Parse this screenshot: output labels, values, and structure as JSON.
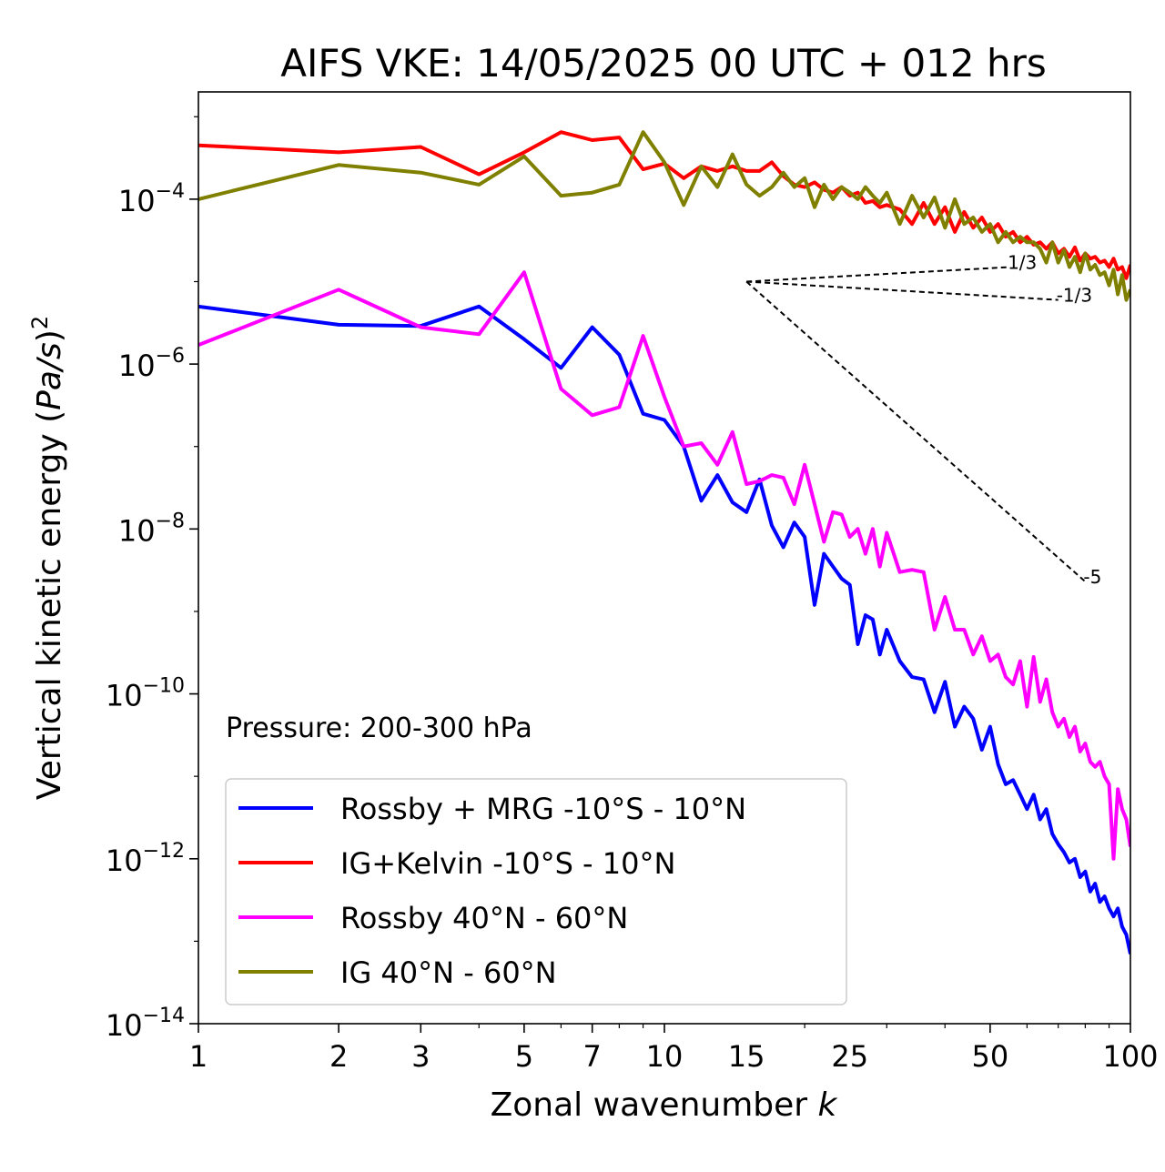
{
  "chart_data": {
    "type": "line",
    "title": "AIFS VKE: 14/05/2025 00 UTC + 012 hrs",
    "xlabel_text": "Zonal wavenumber ",
    "xlabel_italic": "k",
    "ylabel_text": "Vertical kinetic energy (",
    "ylabel_italic": "Pa/s",
    "ylabel_close": ")",
    "ylabel_sup": "2",
    "x_scale": "log",
    "y_scale": "log",
    "xlim": [
      1,
      100
    ],
    "ylim": [
      1e-14,
      0.002
    ],
    "x_ticks": [
      1,
      2,
      3,
      5,
      7,
      10,
      15,
      25,
      50,
      100
    ],
    "x_tick_labels": [
      "1",
      "2",
      "3",
      "5",
      "7",
      "10",
      "15",
      "25",
      "50",
      "100"
    ],
    "y_ticks": [
      {
        "value": 0.0001,
        "base": "10",
        "exp": "−4"
      },
      {
        "value": 1e-06,
        "base": "10",
        "exp": "−6"
      },
      {
        "value": 1e-08,
        "base": "10",
        "exp": "−8"
      },
      {
        "value": 1e-10,
        "base": "10",
        "exp": "−10"
      },
      {
        "value": 1e-12,
        "base": "10",
        "exp": "−12"
      },
      {
        "value": 1e-14,
        "base": "10",
        "exp": "−14"
      }
    ],
    "grid": false,
    "legend_placement": "lower-left",
    "annotation": "Pressure: 200-300 hPa",
    "reference_slopes": [
      {
        "label": "1/3",
        "x": [
          15,
          55
        ],
        "y": [
          1e-05,
          1.5e-05
        ]
      },
      {
        "label": "-1/3",
        "x": [
          15,
          70
        ],
        "y": [
          1e-05,
          6e-06
        ]
      },
      {
        "label": "-5",
        "x": [
          15,
          80
        ],
        "y": [
          1e-05,
          2.3e-09
        ]
      }
    ],
    "series": [
      {
        "name": "Rossby + MRG -10°S - 10°N",
        "color": "#0000ff",
        "x": [
          1,
          2,
          3,
          4,
          5,
          6,
          7,
          8,
          9,
          10,
          11,
          12,
          13,
          14,
          15,
          16,
          17,
          18,
          19,
          20,
          21,
          22,
          23,
          24,
          25,
          26,
          27,
          28,
          29,
          30,
          32,
          34,
          36,
          38,
          40,
          42,
          44,
          46,
          48,
          50,
          52,
          54,
          56,
          58,
          60,
          62,
          64,
          66,
          68,
          70,
          72,
          74,
          76,
          78,
          80,
          82,
          84,
          86,
          88,
          90,
          92,
          94,
          96,
          98,
          100
        ],
        "y": [
          5e-06,
          3e-06,
          2.9e-06,
          5e-06,
          2e-06,
          9e-07,
          2.8e-06,
          1.3e-06,
          2.5e-07,
          2.1e-07,
          1e-07,
          2.2e-08,
          4.5e-08,
          2.1e-08,
          1.6e-08,
          4e-08,
          1.1e-08,
          6e-09,
          1.2e-08,
          8e-09,
          1.2e-09,
          5e-09,
          3.5e-09,
          2.5e-09,
          2.1e-09,
          4e-10,
          9e-10,
          8e-10,
          3e-10,
          6e-10,
          2.5e-10,
          1.6e-10,
          1.5e-10,
          6e-11,
          1.4e-10,
          4e-11,
          7e-11,
          5e-11,
          2.1e-11,
          4e-11,
          1.4e-11,
          8e-12,
          9e-12,
          6e-12,
          4e-12,
          6e-12,
          3e-12,
          4e-12,
          2e-12,
          1.5e-12,
          1.2e-12,
          9e-13,
          1e-12,
          6e-13,
          7e-13,
          4e-13,
          5e-13,
          3e-13,
          3.5e-13,
          2.5e-13,
          2e-13,
          2.5e-13,
          1.5e-13,
          1.2e-13,
          7e-14
        ]
      },
      {
        "name": "IG+Kelvin -10°S - 10°N",
        "color": "#ff0000",
        "x": [
          1,
          2,
          3,
          4,
          5,
          6,
          7,
          8,
          9,
          10,
          11,
          12,
          13,
          14,
          15,
          16,
          17,
          18,
          19,
          20,
          21,
          22,
          23,
          24,
          25,
          26,
          27,
          28,
          29,
          30,
          32,
          34,
          36,
          38,
          40,
          42,
          44,
          46,
          48,
          50,
          52,
          54,
          56,
          58,
          60,
          62,
          64,
          66,
          68,
          70,
          72,
          74,
          76,
          78,
          80,
          82,
          84,
          86,
          88,
          90,
          92,
          94,
          96,
          98,
          100
        ],
        "y": [
          0.00045,
          0.00037,
          0.00043,
          0.0002,
          0.00037,
          0.00065,
          0.00052,
          0.00056,
          0.00023,
          0.00027,
          0.00018,
          0.00025,
          0.00022,
          0.00025,
          0.00022,
          0.00022,
          0.00028,
          0.00019,
          0.00015,
          0.00014,
          0.00016,
          0.00013,
          0.00012,
          0.00014,
          0.00011,
          0.00012,
          9e-05,
          9.5e-05,
          8e-05,
          8.5e-05,
          7.5e-05,
          5e-05,
          9e-05,
          5e-05,
          8e-05,
          4e-05,
          7e-05,
          4.5e-05,
          6e-05,
          4e-05,
          5e-05,
          3.5e-05,
          4e-05,
          3e-05,
          3.5e-05,
          2.8e-05,
          3e-05,
          2.5e-05,
          3e-05,
          2.2e-05,
          2.5e-05,
          2e-05,
          2.6e-05,
          1.8e-05,
          2.2e-05,
          1.9e-05,
          2e-05,
          1.7e-05,
          1.8e-05,
          1.5e-05,
          1.9e-05,
          1.4e-05,
          1.5e-05,
          1.1e-05,
          1.6e-05
        ]
      },
      {
        "name": "Rossby 40°N - 60°N",
        "color": "#ff00ff",
        "x": [
          1,
          2,
          3,
          4,
          5,
          6,
          7,
          8,
          9,
          10,
          11,
          12,
          13,
          14,
          15,
          16,
          17,
          18,
          19,
          20,
          21,
          22,
          23,
          24,
          25,
          26,
          27,
          28,
          29,
          30,
          32,
          34,
          36,
          38,
          40,
          42,
          44,
          46,
          48,
          50,
          52,
          54,
          56,
          58,
          60,
          62,
          64,
          66,
          68,
          70,
          72,
          74,
          76,
          78,
          80,
          82,
          84,
          86,
          88,
          90,
          92,
          94,
          96,
          98,
          100
        ],
        "y": [
          1.7e-06,
          8e-06,
          2.8e-06,
          2.3e-06,
          1.3e-05,
          5e-07,
          2.4e-07,
          3e-07,
          2.2e-06,
          4e-07,
          1e-07,
          1.1e-07,
          6e-08,
          1.5e-07,
          3.5e-08,
          3.8e-08,
          4.5e-08,
          4.2e-08,
          2e-08,
          6e-08,
          2e-08,
          7e-09,
          1.6e-08,
          1.5e-08,
          8e-09,
          1e-08,
          5e-09,
          1e-08,
          3.5e-09,
          9e-09,
          3e-09,
          3.2e-09,
          3e-09,
          6e-10,
          1.5e-09,
          6e-10,
          6e-10,
          3e-10,
          5e-10,
          2.5e-10,
          3e-10,
          1.6e-10,
          1.3e-10,
          2.5e-10,
          7e-11,
          2.8e-10,
          8e-11,
          1.5e-10,
          6e-11,
          4e-11,
          5e-11,
          3e-11,
          4e-11,
          2e-11,
          2.5e-11,
          1.5e-11,
          1.3e-11,
          1.5e-11,
          1e-11,
          8e-12,
          1e-12,
          7e-12,
          4e-12,
          3e-12,
          1.4e-12
        ]
      },
      {
        "name": "IG 40°N - 60°N",
        "color": "#808000",
        "x": [
          1,
          2,
          3,
          4,
          5,
          6,
          7,
          8,
          9,
          10,
          11,
          12,
          13,
          14,
          15,
          16,
          17,
          18,
          19,
          20,
          21,
          22,
          23,
          24,
          25,
          26,
          27,
          28,
          29,
          30,
          32,
          34,
          36,
          38,
          40,
          42,
          44,
          46,
          48,
          50,
          52,
          54,
          56,
          58,
          60,
          62,
          64,
          66,
          68,
          70,
          72,
          74,
          76,
          78,
          80,
          82,
          84,
          86,
          88,
          90,
          92,
          94,
          96,
          98,
          100
        ],
        "y": [
          0.0001,
          0.00026,
          0.00021,
          0.00015,
          0.00033,
          0.00011,
          0.00012,
          0.00015,
          0.00065,
          0.00028,
          8.5e-05,
          0.00025,
          0.00014,
          0.00035,
          0.00015,
          0.00011,
          0.00014,
          0.00021,
          0.00014,
          0.00018,
          8e-05,
          0.00015,
          0.0001,
          0.00014,
          0.00012,
          0.0001,
          0.00014,
          0.00011,
          9e-05,
          0.00012,
          5e-05,
          0.00011,
          6e-05,
          0.000105,
          4.5e-05,
          0.0001,
          5e-05,
          6e-05,
          4e-05,
          5e-05,
          3e-05,
          4e-05,
          3e-05,
          3.5e-05,
          3e-05,
          3e-05,
          2.5e-05,
          1.7e-05,
          3e-05,
          1.7e-05,
          2.4e-05,
          1.5e-05,
          2e-05,
          1.3e-05,
          2.2e-05,
          1.4e-05,
          1.6e-05,
          1.2e-05,
          1.3e-05,
          9e-06,
          1.4e-05,
          7e-06,
          1.2e-05,
          6e-06,
          8e-06
        ]
      }
    ]
  }
}
